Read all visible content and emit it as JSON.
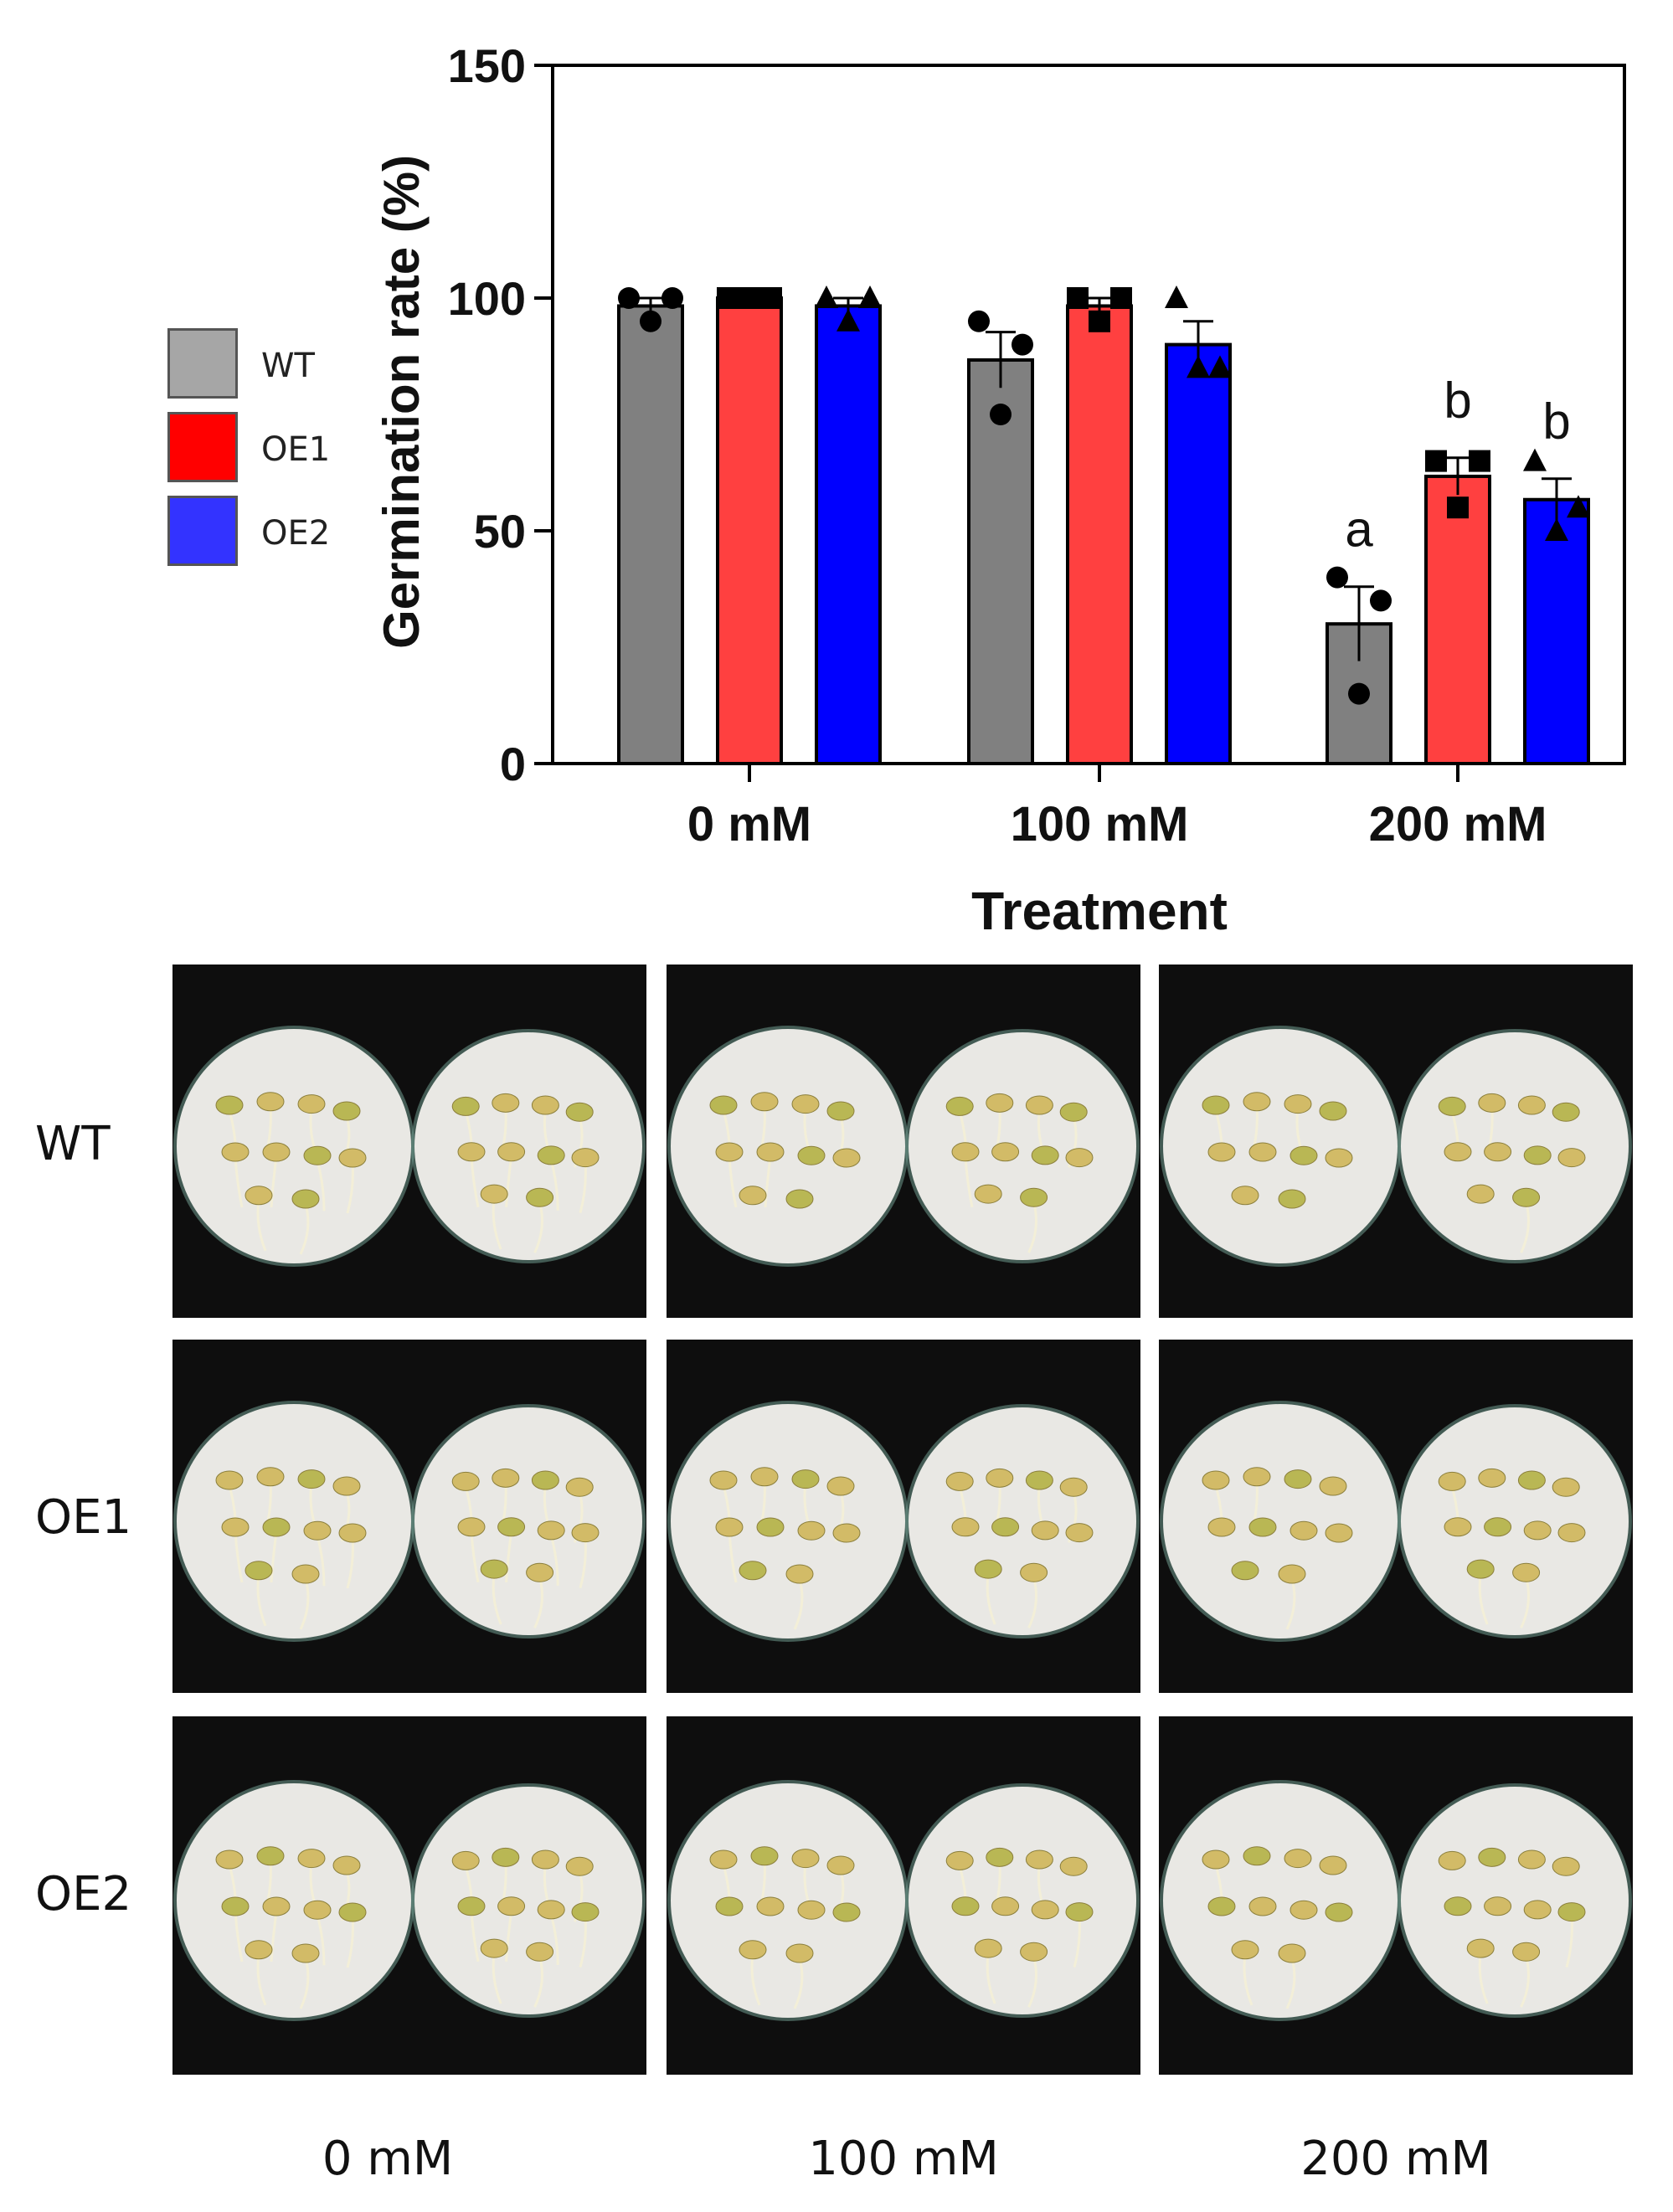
{
  "chart_data": {
    "type": "bar",
    "title": "",
    "xlabel": "Treatment",
    "ylabel": "Germination rate (%)",
    "ylim": [
      0,
      150
    ],
    "yticks": [
      0,
      50,
      100,
      150
    ],
    "categories": [
      "0 mM",
      "100 mM",
      "200 mM"
    ],
    "series": [
      {
        "name": "WT",
        "color": "#808080",
        "marker": "circle",
        "values": [
          98.3,
          86.7,
          30.0
        ],
        "errors": [
          1.7,
          6.0,
          8.0
        ],
        "points": [
          [
            100,
            100,
            95
          ],
          [
            95,
            90,
            75
          ],
          [
            40,
            35,
            15
          ]
        ],
        "letters": [
          "",
          "",
          "a"
        ]
      },
      {
        "name": "OE1",
        "color": "#ff4040",
        "marker": "square",
        "values": [
          100,
          98.3,
          61.7
        ],
        "errors": [
          0,
          1.7,
          4.0
        ],
        "points": [
          [
            100,
            100,
            100
          ],
          [
            100,
            100,
            95
          ],
          [
            65,
            65,
            55
          ]
        ],
        "letters": [
          "",
          "",
          "b"
        ]
      },
      {
        "name": "OE2",
        "color": "#0000ff",
        "marker": "triangle",
        "values": [
          98.3,
          90.0,
          56.7
        ],
        "errors": [
          1.7,
          5.0,
          4.5
        ],
        "points": [
          [
            100,
            100,
            95
          ],
          [
            100,
            85,
            85
          ],
          [
            65,
            55,
            50
          ]
        ],
        "letters": [
          "",
          "",
          "b"
        ]
      }
    ],
    "legend": "left"
  },
  "legend": {
    "items": [
      {
        "label": "WT",
        "color": "#a6a6a6"
      },
      {
        "label": "OE1",
        "color": "#ff0000"
      },
      {
        "label": "OE2",
        "color": "#3333ff"
      }
    ]
  },
  "photos": {
    "row_labels": [
      "WT",
      "OE1",
      "OE2"
    ],
    "col_labels": [
      "0 mM",
      "100 mM",
      "200 mM"
    ]
  }
}
